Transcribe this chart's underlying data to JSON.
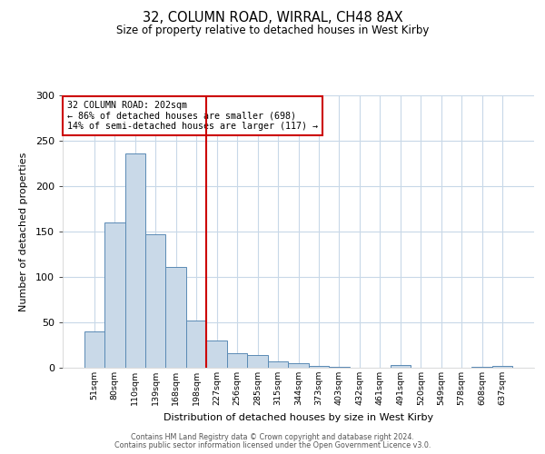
{
  "title": "32, COLUMN ROAD, WIRRAL, CH48 8AX",
  "subtitle": "Size of property relative to detached houses in West Kirby",
  "xlabel": "Distribution of detached houses by size in West Kirby",
  "ylabel": "Number of detached properties",
  "bar_labels": [
    "51sqm",
    "80sqm",
    "110sqm",
    "139sqm",
    "168sqm",
    "198sqm",
    "227sqm",
    "256sqm",
    "285sqm",
    "315sqm",
    "344sqm",
    "373sqm",
    "403sqm",
    "432sqm",
    "461sqm",
    "491sqm",
    "520sqm",
    "549sqm",
    "578sqm",
    "608sqm",
    "637sqm"
  ],
  "bar_values": [
    40,
    160,
    236,
    147,
    111,
    52,
    30,
    16,
    14,
    7,
    5,
    2,
    1,
    0,
    0,
    3,
    0,
    0,
    0,
    1,
    2
  ],
  "bar_color": "#c9d9e8",
  "bar_edge_color": "#5a8ab5",
  "vline_x": 5.5,
  "vline_color": "#cc0000",
  "annotation_lines": [
    "32 COLUMN ROAD: 202sqm",
    "← 86% of detached houses are smaller (698)",
    "14% of semi-detached houses are larger (117) →"
  ],
  "annotation_box_color": "#cc0000",
  "ylim": [
    0,
    300
  ],
  "yticks": [
    0,
    50,
    100,
    150,
    200,
    250,
    300
  ],
  "footer_line1": "Contains HM Land Registry data © Crown copyright and database right 2024.",
  "footer_line2": "Contains public sector information licensed under the Open Government Licence v3.0.",
  "background_color": "#ffffff",
  "grid_color": "#c8d8e8"
}
